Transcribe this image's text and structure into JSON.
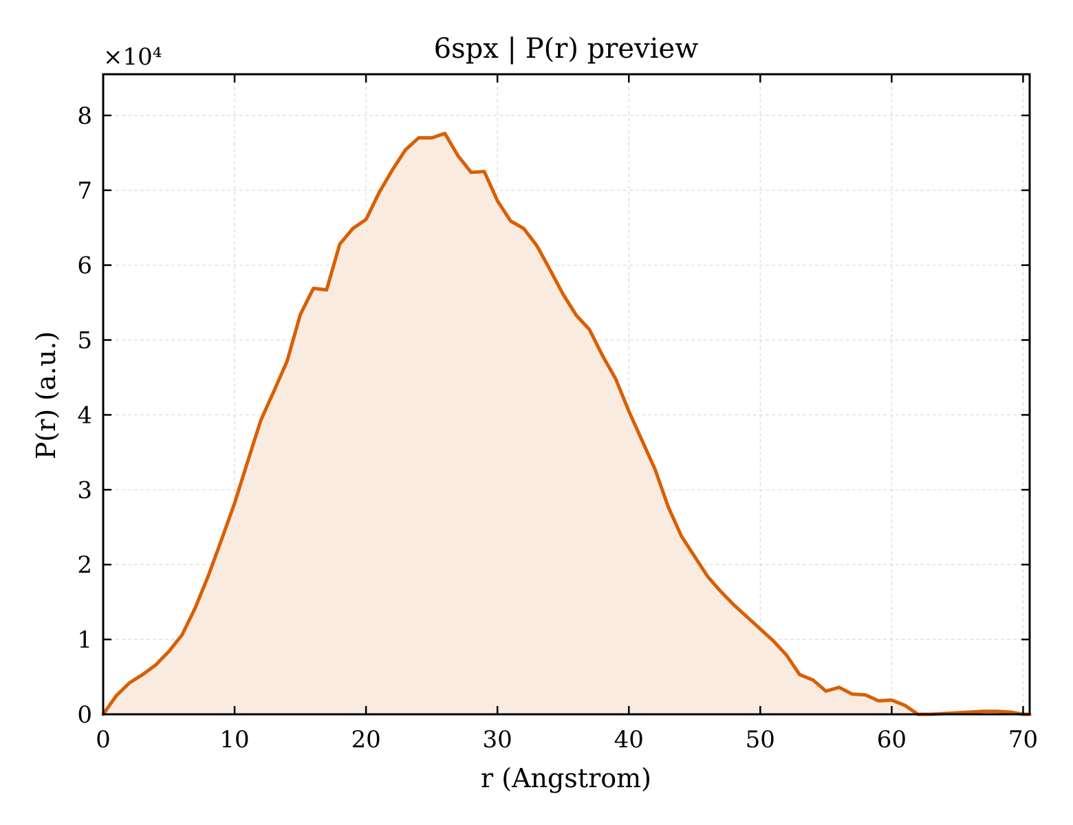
{
  "chart_data": {
    "type": "area",
    "title": "6spx | P(r) preview",
    "xlabel": "r (Angstrom)",
    "ylabel": "P(r) (a.u.)",
    "y_multiplier_label": "×10⁴",
    "xlim": [
      0,
      70.5
    ],
    "ylim": [
      0,
      8.55
    ],
    "y_scale_factor": 10000,
    "x_ticks": [
      0,
      10,
      20,
      30,
      40,
      50,
      60,
      70
    ],
    "x_tick_labels": [
      "0",
      "10",
      "20",
      "30",
      "40",
      "50",
      "60",
      "70"
    ],
    "y_ticks": [
      0,
      1,
      2,
      3,
      4,
      5,
      6,
      7,
      8
    ],
    "y_tick_labels": [
      "0",
      "1",
      "2",
      "3",
      "4",
      "5",
      "6",
      "7",
      "8"
    ],
    "grid": true,
    "line_color": "#d95f02",
    "fill_color": "#f9ebe0",
    "series": [
      {
        "x": [
          0,
          1,
          2,
          3,
          4,
          5,
          6,
          7,
          8,
          9,
          10,
          11,
          12,
          13,
          14,
          15,
          16,
          17,
          18,
          19,
          20,
          21,
          22,
          23,
          24,
          25,
          26,
          27,
          28,
          29,
          30,
          31,
          32,
          33,
          34,
          35,
          36,
          37,
          38,
          39,
          40,
          41,
          42,
          43,
          44,
          45,
          46,
          47,
          48,
          49,
          50,
          51,
          52,
          53,
          54,
          55,
          56,
          57,
          58,
          59,
          60,
          61,
          62,
          63,
          64,
          65,
          66,
          67,
          68,
          69,
          70,
          70.5
        ],
        "y": [
          0,
          0.25,
          0.42,
          0.53,
          0.66,
          0.84,
          1.06,
          1.42,
          1.85,
          2.33,
          2.82,
          3.38,
          3.93,
          4.32,
          4.72,
          5.34,
          5.69,
          5.67,
          6.28,
          6.49,
          6.61,
          6.97,
          7.27,
          7.54,
          7.7,
          7.7,
          7.76,
          7.46,
          7.24,
          7.25,
          6.86,
          6.59,
          6.49,
          6.26,
          5.94,
          5.61,
          5.33,
          5.14,
          4.79,
          4.48,
          4.05,
          3.66,
          3.27,
          2.77,
          2.38,
          2.11,
          1.84,
          1.64,
          1.46,
          1.3,
          1.14,
          0.98,
          0.79,
          0.53,
          0.46,
          0.31,
          0.36,
          0.27,
          0.26,
          0.18,
          0.19,
          0.12,
          0.0,
          0.0,
          0.01,
          0.02,
          0.03,
          0.04,
          0.04,
          0.03,
          0.0,
          0.0
        ]
      }
    ]
  }
}
